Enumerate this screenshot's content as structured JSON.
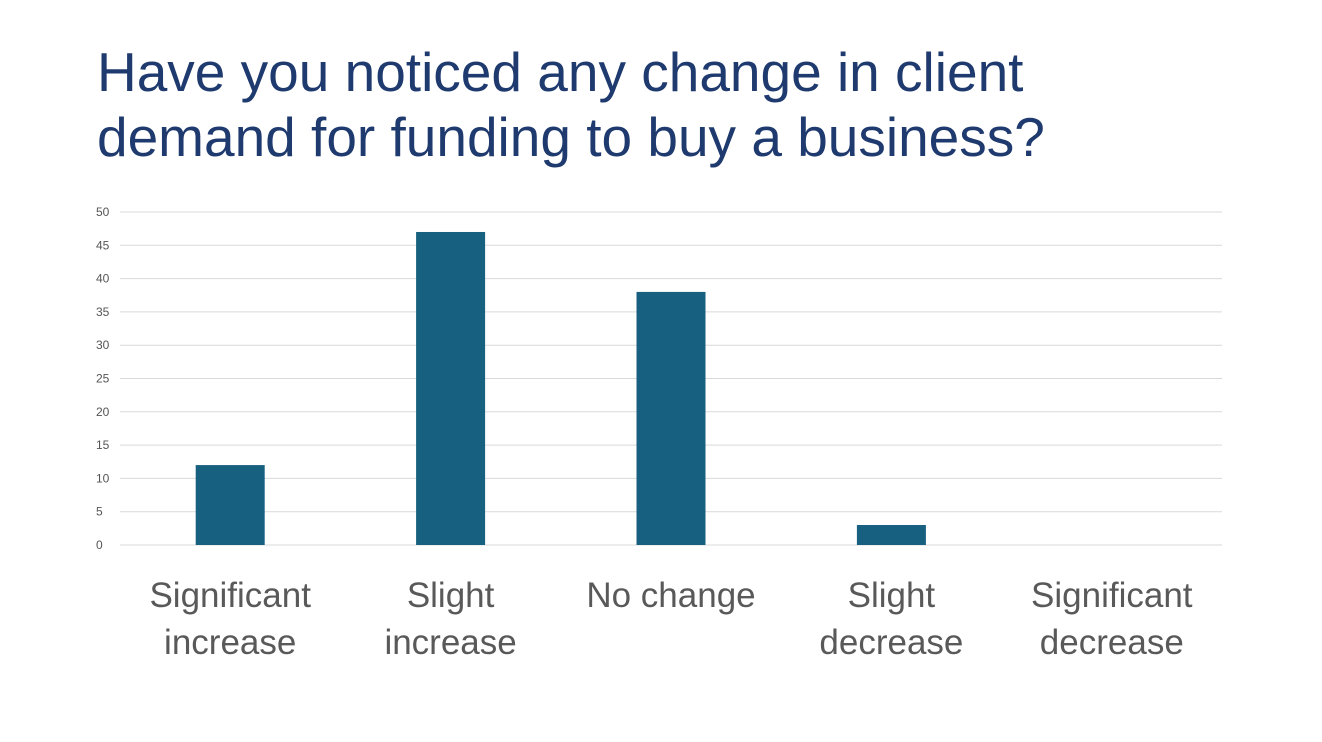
{
  "chart_data": {
    "type": "bar",
    "title": "Have you noticed any change in client demand for funding to buy a business?",
    "categories": [
      [
        "Significant",
        "increase"
      ],
      [
        "Slight",
        "increase"
      ],
      [
        "No change"
      ],
      [
        "Slight",
        "decrease"
      ],
      [
        "Significant",
        "decrease"
      ]
    ],
    "values": [
      12,
      47,
      38,
      3,
      0
    ],
    "ylim": [
      0,
      50
    ],
    "yticks": [
      0,
      5,
      10,
      15,
      20,
      25,
      30,
      35,
      40,
      45,
      50
    ],
    "grid": true,
    "legend": "none",
    "bar_color": "#17607f"
  }
}
